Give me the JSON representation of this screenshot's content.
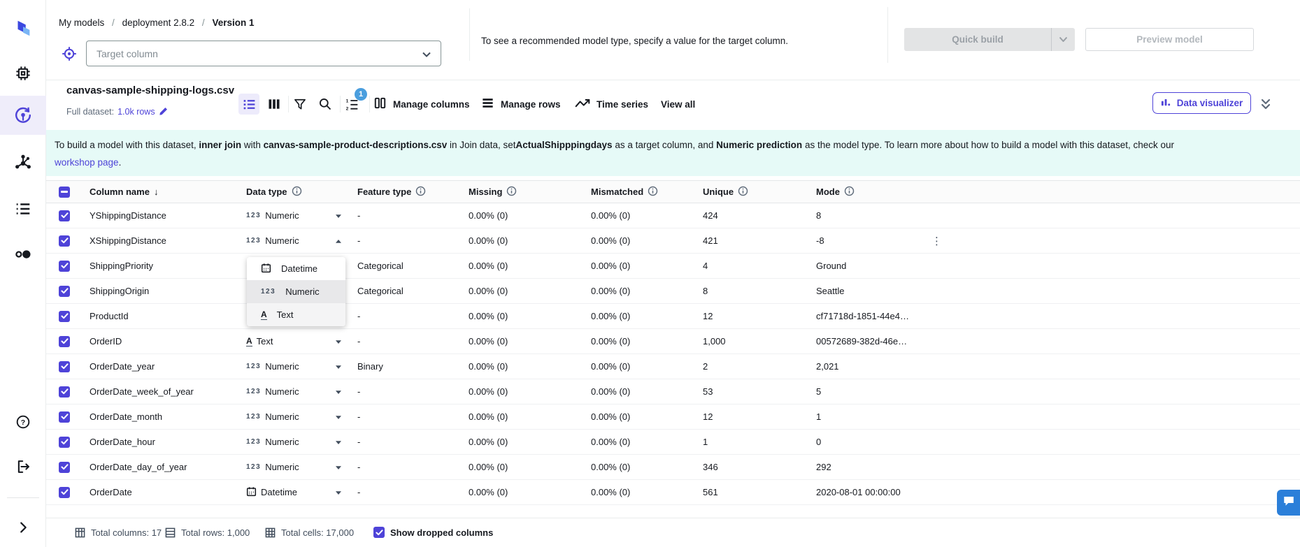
{
  "colors": {
    "accent": "#4e43d8",
    "badge_blue": "#4a9ede",
    "banner_bg": "#e6faf7"
  },
  "breadcrumb": {
    "items": [
      "My models",
      "deployment 2.8.2",
      "Version 1"
    ],
    "separator": "/"
  },
  "target": {
    "placeholder": "Target column",
    "hint": "To see a recommended model type, specify a value for the target column."
  },
  "actions": {
    "quick_build": "Quick build",
    "preview_model": "Preview model"
  },
  "dataset": {
    "name": "canvas-sample-shipping-logs.csv",
    "full_label": "Full dataset:",
    "rows_link": "1.0k rows"
  },
  "toolbar": {
    "sort_badge": "1",
    "manage_columns": "Manage columns",
    "manage_rows": "Manage rows",
    "time_series": "Time series",
    "view_all": "View all",
    "data_visualizer": "Data visualizer",
    "icons": [
      "list-view-icon",
      "column-view-icon",
      "filter-icon",
      "search-icon",
      "sort-icon",
      "manage-columns-icon",
      "manage-rows-icon",
      "time-series-icon",
      "bar-chart-icon",
      "double-chevron-down-icon"
    ]
  },
  "sidebar_icons": [
    "canvas-logo",
    "compute-chip-icon",
    "models-icon",
    "automations-icon",
    "list-icon",
    "circles-icon",
    "help-icon",
    "sign-out-icon",
    "expand-icon"
  ],
  "banner": {
    "lines": [
      [
        {
          "t": "To build a model with this dataset, "
        },
        {
          "t": "inner join",
          "b": true
        },
        {
          "t": " with "
        },
        {
          "t": "canvas-sample-product-descriptions.csv",
          "b": true
        },
        {
          "t": " in Join data, set"
        },
        {
          "t": "ActualShipppingdays",
          "b": true
        },
        {
          "t": " as a target column, and "
        },
        {
          "t": "Numeric prediction",
          "b": true
        },
        {
          "t": " as the model type. To learn more about how to build a model with this dataset, check our"
        }
      ],
      [
        {
          "t": "workshop page",
          "link": true
        },
        {
          "t": "."
        }
      ]
    ]
  },
  "table": {
    "headers": [
      {
        "label": "Column name",
        "sort": true
      },
      {
        "label": "Data type",
        "info": true
      },
      {
        "label": "Feature type",
        "info": true
      },
      {
        "label": "Missing",
        "info": true
      },
      {
        "label": "Mismatched",
        "info": true
      },
      {
        "label": "Unique",
        "info": true
      },
      {
        "label": "Mode",
        "info": true
      }
    ],
    "rows": [
      {
        "checked": true,
        "name": "YShippingDistance",
        "dtype_icon": "123",
        "dtype": "Numeric",
        "caret": "down",
        "feature": "-",
        "missing": "0.00% (0)",
        "mismatched": "0.00% (0)",
        "unique": "424",
        "mode": "8"
      },
      {
        "checked": true,
        "name": "XShippingDistance",
        "dtype_icon": "123",
        "dtype": "Numeric",
        "caret": "up",
        "feature": "-",
        "missing": "0.00% (0)",
        "mismatched": "0.00% (0)",
        "unique": "421",
        "mode": "-8",
        "kebab": true
      },
      {
        "checked": true,
        "name": "ShippingPriority",
        "dtype_icon": "",
        "dtype": "",
        "caret": "none",
        "feature": "Categorical",
        "missing": "0.00% (0)",
        "mismatched": "0.00% (0)",
        "unique": "4",
        "mode": "Ground"
      },
      {
        "checked": true,
        "name": "ShippingOrigin",
        "dtype_icon": "",
        "dtype": "",
        "caret": "none",
        "feature": "Categorical",
        "missing": "0.00% (0)",
        "mismatched": "0.00% (0)",
        "unique": "8",
        "mode": "Seattle"
      },
      {
        "checked": true,
        "name": "ProductId",
        "dtype_icon": "",
        "dtype": "",
        "caret": "none",
        "feature": "-",
        "missing": "0.00% (0)",
        "mismatched": "0.00% (0)",
        "unique": "12",
        "mode": "cf71718d-1851-44e4…"
      },
      {
        "checked": true,
        "name": "OrderID",
        "dtype_icon": "text",
        "dtype": "Text",
        "caret": "down",
        "feature": "-",
        "missing": "0.00% (0)",
        "mismatched": "0.00% (0)",
        "unique": "1,000",
        "mode": "00572689-382d-46e…"
      },
      {
        "checked": true,
        "name": "OrderDate_year",
        "dtype_icon": "123",
        "dtype": "Numeric",
        "caret": "down",
        "feature": "Binary",
        "missing": "0.00% (0)",
        "mismatched": "0.00% (0)",
        "unique": "2",
        "mode": "2,021"
      },
      {
        "checked": true,
        "name": "OrderDate_week_of_year",
        "dtype_icon": "123",
        "dtype": "Numeric",
        "caret": "down",
        "feature": "-",
        "missing": "0.00% (0)",
        "mismatched": "0.00% (0)",
        "unique": "53",
        "mode": "5"
      },
      {
        "checked": true,
        "name": "OrderDate_month",
        "dtype_icon": "123",
        "dtype": "Numeric",
        "caret": "down",
        "feature": "-",
        "missing": "0.00% (0)",
        "mismatched": "0.00% (0)",
        "unique": "12",
        "mode": "1"
      },
      {
        "checked": true,
        "name": "OrderDate_hour",
        "dtype_icon": "123",
        "dtype": "Numeric",
        "caret": "down",
        "feature": "-",
        "missing": "0.00% (0)",
        "mismatched": "0.00% (0)",
        "unique": "1",
        "mode": "0"
      },
      {
        "checked": true,
        "name": "OrderDate_day_of_year",
        "dtype_icon": "123",
        "dtype": "Numeric",
        "caret": "down",
        "feature": "-",
        "missing": "0.00% (0)",
        "mismatched": "0.00% (0)",
        "unique": "346",
        "mode": "292"
      },
      {
        "checked": true,
        "name": "OrderDate",
        "dtype_icon": "calendar",
        "dtype": "Datetime",
        "caret": "down",
        "feature": "-",
        "missing": "0.00% (0)",
        "mismatched": "0.00% (0)",
        "unique": "561",
        "mode": "2020-08-01 00:00:00"
      }
    ]
  },
  "dropdown": {
    "items": [
      {
        "icon": "calendar-icon",
        "label": "Datetime",
        "state": "normal"
      },
      {
        "icon": "numeric-123-icon",
        "label": "Numeric",
        "state": "highlighted"
      },
      {
        "icon": "text-icon",
        "label": "Text",
        "state": "hover"
      }
    ]
  },
  "footer": {
    "total_columns": "Total columns: 17",
    "total_rows": "Total rows: 1,000",
    "total_cells": "Total cells: 17,000",
    "show_dropped": "Show dropped columns",
    "show_dropped_checked": true
  }
}
